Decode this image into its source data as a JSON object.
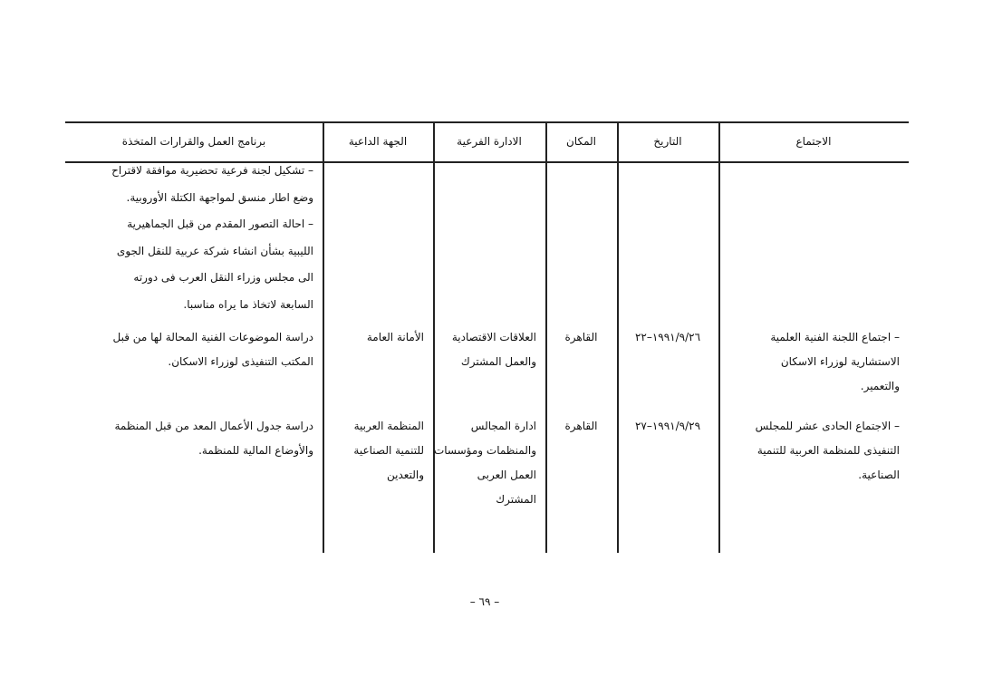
{
  "table": {
    "headers": [
      "الاجتماع",
      "التاريخ",
      "المكان",
      "الادارة الفرعية",
      "الجهة الداعية",
      "برنامج العمل والقرارات المتخذة"
    ],
    "notes": [
      "– تشكيل لجنة فرعية تحضيرية موافقة لاقتراح",
      "وضع اطار منسق لمواجهة الكتلة الأوروبية.",
      "– احالة التصور المقدم من قبل الجماهيرية",
      "الليبية بشأن انشاء شركة عربية للنقل الجوى",
      "الى مجلس وزراء النقل العرب فى دورته",
      "السابعة لاتخاذ ما يراه مناسبا."
    ],
    "rows": [
      {
        "meeting": [
          "– اجتماع اللجنة الفنية العلمية",
          "الاستشارية لوزراء الاسكان",
          "والتعمير."
        ],
        "date": "١٩٩١/٩/٢٦–٢٢",
        "place": "القاهرة",
        "admin": [
          "العلاقات الاقتصادية",
          "والعمل المشترك"
        ],
        "party": [
          "الأمانة العامة"
        ],
        "program": [
          "دراسة الموضوعات الفنية المحالة لها من قبل",
          "المكتب التنفيذى لوزراء الاسكان."
        ]
      },
      {
        "meeting": [
          "– الاجتماع الحادى عشر للمجلس",
          "التنفيذى للمنظمة العربية للتنمية",
          "الصناعية."
        ],
        "date": "١٩٩١/٩/٢٩–٢٧",
        "place": "القاهرة",
        "admin": [
          "ادارة المجالس",
          "والمنظمات ومؤسسات",
          "العمل العربى",
          "المشترك"
        ],
        "party": [
          "المنظمة العربية",
          "للتنمية الصناعية",
          "والتعدين"
        ],
        "program": [
          "دراسة جدول الأعمال المعد من قبل المنظمة",
          "والأوضاع المالية للمنظمة."
        ]
      }
    ]
  },
  "footer": {
    "page_number": "– ٦٩ –"
  }
}
